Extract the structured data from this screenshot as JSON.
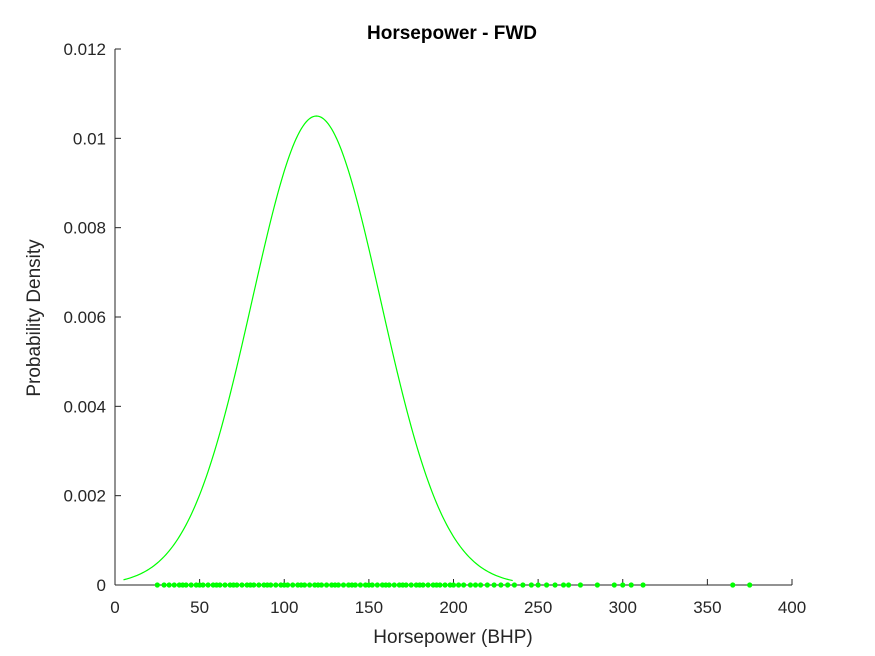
{
  "chart_data": {
    "type": "line",
    "title": "Horsepower - FWD",
    "xlabel": "Horsepower (BHP)",
    "ylabel": "Probability Density",
    "xlim": [
      0,
      400
    ],
    "ylim": [
      0,
      0.012
    ],
    "xticks": [
      0,
      50,
      100,
      150,
      200,
      250,
      300,
      350,
      400
    ],
    "xtick_labels": [
      "0",
      "50",
      "100",
      "150",
      "200",
      "250",
      "300",
      "350",
      "400"
    ],
    "yticks": [
      0,
      0.002,
      0.004,
      0.006,
      0.008,
      0.01,
      0.012
    ],
    "ytick_labels": [
      "0",
      "0.002",
      "0.004",
      "0.006",
      "0.008",
      "0.01",
      "0.012"
    ],
    "grid": false,
    "legend": "none",
    "color": "#00ff00",
    "series": [
      {
        "kind": "fitted-normal-pdf",
        "mean": 119,
        "std": 38,
        "x_range": [
          5,
          235
        ],
        "peak": 0.0105
      },
      {
        "kind": "observations",
        "x": [
          25,
          29,
          32,
          35,
          38,
          40,
          42,
          45,
          48,
          50,
          52,
          55,
          58,
          60,
          62,
          65,
          68,
          70,
          72,
          75,
          78,
          80,
          82,
          85,
          88,
          90,
          92,
          95,
          98,
          100,
          102,
          105,
          108,
          110,
          112,
          115,
          118,
          120,
          122,
          125,
          128,
          130,
          132,
          135,
          138,
          140,
          142,
          145,
          148,
          150,
          152,
          155,
          158,
          160,
          162,
          165,
          168,
          170,
          172,
          175,
          178,
          180,
          182,
          185,
          188,
          190,
          192,
          195,
          198,
          200,
          203,
          206,
          210,
          213,
          216,
          220,
          224,
          228,
          232,
          236,
          241,
          246,
          250,
          255,
          260,
          265,
          268,
          275,
          285,
          295,
          300,
          305,
          312,
          365,
          375
        ],
        "y": 0
      }
    ]
  }
}
